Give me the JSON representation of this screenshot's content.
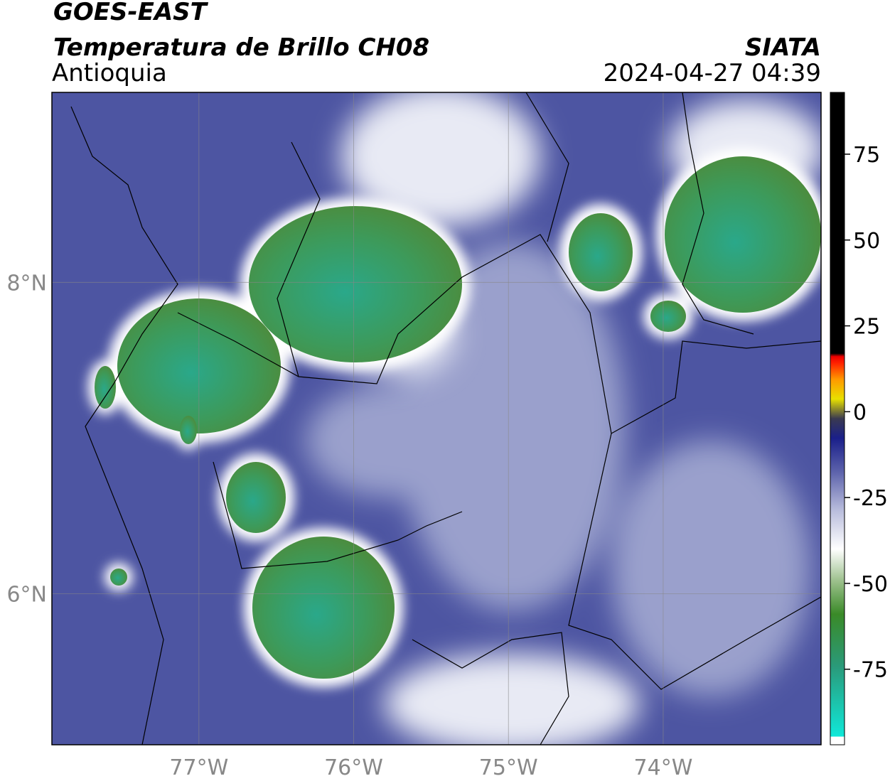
{
  "header": {
    "title": "GOES-EAST",
    "subtitle": "Temperatura de Brillo CH08",
    "region": "Antioquia",
    "source": "SIATA",
    "datetime": "2024-04-27 04:39"
  },
  "map": {
    "xlim": [
      -77.95,
      -72.98
    ],
    "ylim": [
      5.03,
      9.22
    ],
    "xticks": [
      {
        "value": -77,
        "label": "77°W"
      },
      {
        "value": -76,
        "label": "76°W"
      },
      {
        "value": -75,
        "label": "75°W"
      },
      {
        "value": -74,
        "label": "74°W"
      }
    ],
    "yticks": [
      {
        "value": 8,
        "label": "8°N"
      },
      {
        "value": 6,
        "label": "6°N"
      }
    ]
  },
  "colorbar": {
    "lim": [
      -97,
      93
    ],
    "ticks": [
      75,
      50,
      25,
      0,
      -25,
      -50,
      -75
    ]
  }
}
